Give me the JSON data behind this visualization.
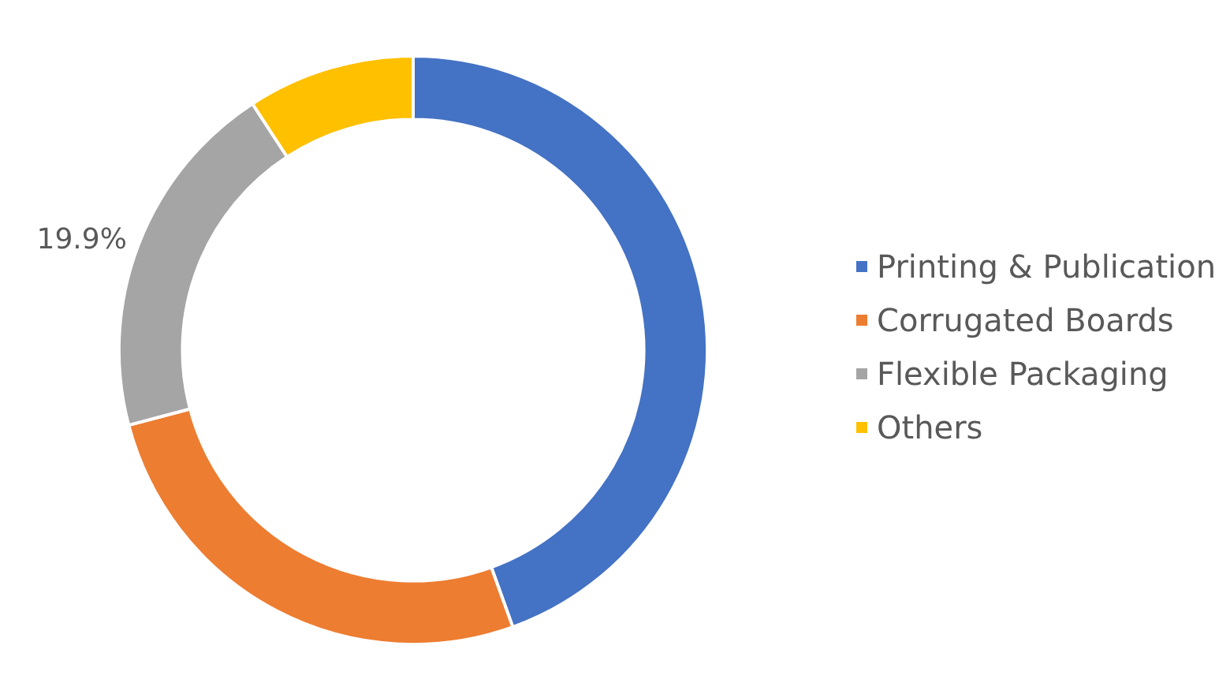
{
  "chart_data": {
    "type": "donut",
    "categories": [
      "Printing & Publication",
      "Corrugated Boards",
      "Flexible Packaging",
      "Others"
    ],
    "values": [
      44.5,
      26.4,
      19.9,
      9.2
    ],
    "colors": [
      "#4472c4",
      "#ed7d31",
      "#a5a5a5",
      "#ffc000"
    ],
    "value_labels": [
      null,
      null,
      "19.9%",
      null
    ],
    "legend": "right"
  }
}
